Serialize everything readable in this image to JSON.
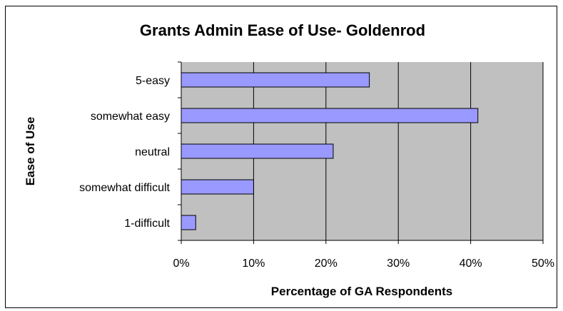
{
  "chart_data": {
    "type": "bar",
    "orientation": "horizontal",
    "title": "Grants Admin Ease of Use- Goldenrod",
    "xlabel": "Percentage of GA Respondents",
    "ylabel": "Ease of Use",
    "categories": [
      "5-easy",
      "somewhat easy",
      "neutral",
      "somewhat difficult",
      "1-difficult"
    ],
    "values": [
      26,
      41,
      21,
      10,
      2
    ],
    "xlim": [
      0,
      50
    ],
    "xticks": [
      0,
      10,
      20,
      30,
      40,
      50
    ],
    "xtick_labels": [
      "0%",
      "10%",
      "20%",
      "30%",
      "40%",
      "50%"
    ],
    "grid": "vertical",
    "legend": "none",
    "colors": {
      "bar_fill": "#9999ff",
      "bar_stroke": "#000000",
      "plot_background": "#c0c0c0",
      "gridline": "#000000"
    }
  }
}
